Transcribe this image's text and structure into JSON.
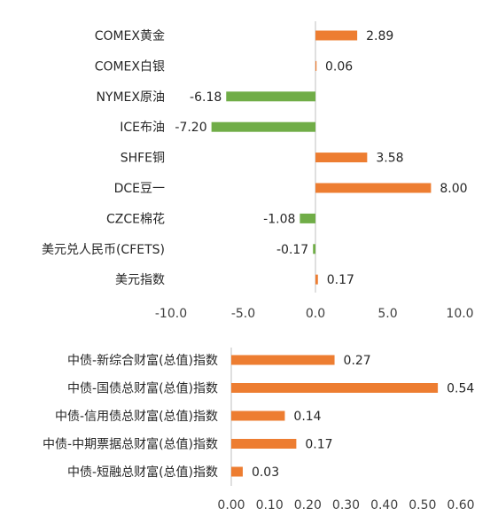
{
  "colors": {
    "positive": "#ED7D31",
    "negative": "#70AD47",
    "axis": "#BFBFBF",
    "text": "#262626"
  },
  "chart_data": [
    {
      "type": "bar",
      "orientation": "horizontal",
      "categories": [
        "COMEX黄金",
        "COMEX白银",
        "NYMEX原油",
        "ICE布油",
        "SHFE铜",
        "DCE豆一",
        "CZCE棉花",
        "美元兑人民币(CFETS)",
        "美元指数"
      ],
      "values": [
        2.89,
        0.06,
        -6.18,
        -7.2,
        3.58,
        8.0,
        -1.08,
        -0.17,
        0.17
      ],
      "value_labels": [
        "2.89",
        "0.06",
        "-6.18",
        "-7.20",
        "3.58",
        "8.00",
        "-1.08",
        "-0.17",
        "0.17"
      ],
      "xlim": [
        -10,
        10
      ],
      "xticks": [
        -10,
        -5,
        0,
        5,
        10
      ],
      "xtick_labels": [
        "-10.0",
        "-5.0",
        "0.0",
        "5.0",
        "10.0"
      ],
      "grid": false,
      "title": "",
      "xlabel": "",
      "ylabel": ""
    },
    {
      "type": "bar",
      "orientation": "horizontal",
      "categories": [
        "中债-新综合财富(总值)指数",
        "中债-国债总财富(总值)指数",
        "中债-信用债总财富(总值)指数",
        "中债-中期票据总财富(总值)指数",
        "中债-短融总财富(总值)指数"
      ],
      "values": [
        0.27,
        0.54,
        0.14,
        0.17,
        0.03
      ],
      "value_labels": [
        "0.27",
        "0.54",
        "0.14",
        "0.17",
        "0.03"
      ],
      "xlim": [
        0,
        0.6
      ],
      "xticks": [
        0,
        0.1,
        0.2,
        0.3,
        0.4,
        0.5,
        0.6
      ],
      "xtick_labels": [
        "0.00",
        "0.10",
        "0.20",
        "0.30",
        "0.40",
        "0.50",
        "0.60"
      ],
      "grid": false,
      "title": "",
      "xlabel": "",
      "ylabel": ""
    }
  ]
}
